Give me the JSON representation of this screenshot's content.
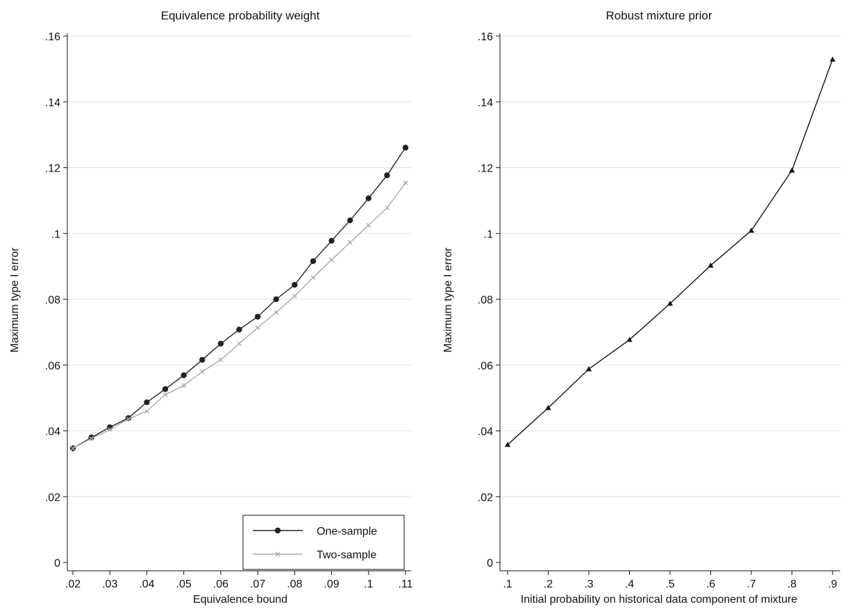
{
  "chart_data": [
    {
      "type": "line",
      "title": "Equivalence probability weight",
      "xlabel": "Equivalence bound",
      "ylabel": "Maximum type I error",
      "xlim": [
        0.02,
        0.11
      ],
      "ylim": [
        0,
        0.16
      ],
      "x_ticks": [
        0.02,
        0.03,
        0.04,
        0.05,
        0.06,
        0.07,
        0.08,
        0.09,
        0.1,
        0.11
      ],
      "x_tick_labels": [
        ".02",
        ".03",
        ".04",
        ".05",
        ".06",
        ".07",
        ".08",
        ".09",
        ".1",
        ".11"
      ],
      "y_ticks": [
        0,
        0.02,
        0.04,
        0.06,
        0.08,
        0.1,
        0.12,
        0.14,
        0.16
      ],
      "y_tick_labels": [
        "0",
        ".02",
        ".04",
        ".06",
        ".08",
        ".1",
        ".12",
        ".14",
        ".16"
      ],
      "grid": "horizontal",
      "legend_position": "bottom-right",
      "x": [
        0.02,
        0.025,
        0.03,
        0.035,
        0.04,
        0.045,
        0.05,
        0.055,
        0.06,
        0.065,
        0.07,
        0.075,
        0.08,
        0.085,
        0.09,
        0.095,
        0.1,
        0.105,
        0.11
      ],
      "series": [
        {
          "name": "One-sample",
          "color": "#222222",
          "marker": "circle",
          "values": [
            0.0347,
            0.038,
            0.0411,
            0.0439,
            0.0487,
            0.0527,
            0.0569,
            0.0616,
            0.0665,
            0.0708,
            0.0747,
            0.08,
            0.0844,
            0.0916,
            0.0978,
            0.104,
            0.1107,
            0.1177,
            0.1261
          ]
        },
        {
          "name": "Two-sample",
          "color": "#aaaaaa",
          "marker": "x",
          "values": [
            0.0347,
            0.0377,
            0.0404,
            0.0436,
            0.046,
            0.051,
            0.0538,
            0.058,
            0.0616,
            0.0665,
            0.0714,
            0.076,
            0.081,
            0.0866,
            0.092,
            0.0973,
            0.1025,
            0.1078,
            0.1154
          ]
        }
      ]
    },
    {
      "type": "line",
      "title": "Robust mixture prior",
      "xlabel": "Initial probability on historical data component of mixture",
      "ylabel": "Maximum type I error",
      "xlim": [
        0.1,
        0.9
      ],
      "ylim": [
        0,
        0.16
      ],
      "x_ticks": [
        0.1,
        0.2,
        0.3,
        0.4,
        0.5,
        0.6,
        0.7,
        0.8,
        0.9
      ],
      "x_tick_labels": [
        ".1",
        ".2",
        ".3",
        ".4",
        ".5",
        ".6",
        ".7",
        ".8",
        ".9"
      ],
      "y_ticks": [
        0,
        0.02,
        0.04,
        0.06,
        0.08,
        0.1,
        0.12,
        0.14,
        0.16
      ],
      "y_tick_labels": [
        "0",
        ".02",
        ".04",
        ".06",
        ".08",
        ".1",
        ".12",
        ".14",
        ".16"
      ],
      "grid": "horizontal",
      "x": [
        0.1,
        0.2,
        0.3,
        0.4,
        0.5,
        0.6,
        0.7,
        0.8,
        0.9
      ],
      "series": [
        {
          "color": "#111111",
          "marker": "triangle",
          "values": [
            0.0358,
            0.047,
            0.0588,
            0.0677,
            0.0787,
            0.0903,
            0.1009,
            0.1192,
            0.1529
          ]
        }
      ]
    }
  ]
}
